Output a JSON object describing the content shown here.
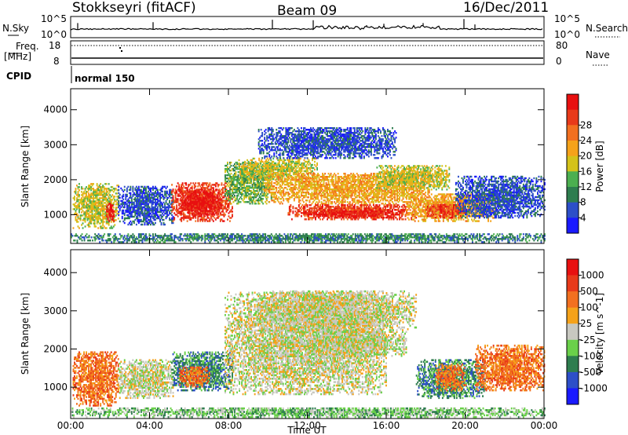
{
  "header": {
    "station": "Stokkseyri (fitACF)",
    "beam": "Beam 09",
    "date": "16/Dec/2011"
  },
  "status_panels": {
    "nsky": {
      "label": "N.Sky",
      "ticks": [
        "10^5",
        "10^0"
      ]
    },
    "nsearch": {
      "label": "N.Search",
      "ticks": [
        "10^5",
        "10^0"
      ]
    },
    "freq": {
      "label_top": "Freq.",
      "label_unit": "[MHz]",
      "ticks": [
        "18",
        "8"
      ]
    },
    "nave": {
      "label": "Nave",
      "ticks": [
        "80",
        "0"
      ]
    },
    "cpid": {
      "label": "CPID",
      "value": "normal 150"
    }
  },
  "chart_data": [
    {
      "type": "heatmap",
      "name": "Power",
      "ylabel": "Slant Range [km]",
      "xlabel": "Time UT",
      "x_ticks": [
        "00:00",
        "04:00",
        "08:00",
        "12:00",
        "16:00",
        "20:00",
        "00:00"
      ],
      "xlim_hours": [
        0,
        24
      ],
      "y_ticks": [
        1000,
        2000,
        3000,
        4000
      ],
      "ylim_km": [
        180,
        4600
      ],
      "colorbar": {
        "label": "Power [dB]",
        "ticks": [
          "4",
          "8",
          "12",
          "16",
          "20",
          "24",
          "28"
        ],
        "colors": [
          "#1a1aff",
          "#2d4fc8",
          "#2e7d4f",
          "#4caf50",
          "#d4c21a",
          "#f5a21a",
          "#f27020",
          "#e83a1a",
          "#e81010"
        ]
      },
      "regions": [
        {
          "t": [
            0.1,
            2.4
          ],
          "r": [
            600,
            1900
          ],
          "level": 4
        },
        {
          "t": [
            1.8,
            2.2
          ],
          "r": [
            800,
            1300
          ],
          "level": 8
        },
        {
          "t": [
            2.4,
            5.2
          ],
          "r": [
            700,
            1800
          ],
          "level": 1
        },
        {
          "t": [
            5.1,
            8.2
          ],
          "r": [
            800,
            1900
          ],
          "level": 7
        },
        {
          "t": [
            5.6,
            7.6
          ],
          "r": [
            1000,
            1700
          ],
          "level": 8
        },
        {
          "t": [
            7.8,
            10.2
          ],
          "r": [
            1300,
            2500
          ],
          "level": 3
        },
        {
          "t": [
            8.5,
            12.5
          ],
          "r": [
            2000,
            2600
          ],
          "level": 4
        },
        {
          "t": [
            9.5,
            16.5
          ],
          "r": [
            2600,
            3500
          ],
          "level": 1
        },
        {
          "t": [
            9.8,
            18.2
          ],
          "r": [
            1300,
            2200
          ],
          "level": 5
        },
        {
          "t": [
            11.0,
            17.5
          ],
          "r": [
            850,
            1300
          ],
          "level": 7
        },
        {
          "t": [
            12.0,
            16.5
          ],
          "r": [
            900,
            1100
          ],
          "level": 8
        },
        {
          "t": [
            15.5,
            19.2
          ],
          "r": [
            1700,
            2400
          ],
          "level": 4
        },
        {
          "t": [
            17.0,
            21.5
          ],
          "r": [
            800,
            1600
          ],
          "level": 5
        },
        {
          "t": [
            18.0,
            20.0
          ],
          "r": [
            900,
            1300
          ],
          "level": 7
        },
        {
          "t": [
            19.5,
            24.0
          ],
          "r": [
            900,
            2100
          ],
          "level": 1
        },
        {
          "t": [
            0.0,
            24.0
          ],
          "r": [
            200,
            450
          ],
          "level": 2
        }
      ]
    },
    {
      "type": "heatmap",
      "name": "Velocity",
      "ylabel": "Slant Range [km]",
      "xlabel": "Time UT",
      "x_ticks": [
        "00:00",
        "04:00",
        "08:00",
        "12:00",
        "16:00",
        "20:00",
        "00:00"
      ],
      "xlim_hours": [
        0,
        24
      ],
      "y_ticks": [
        1000,
        2000,
        3000,
        4000
      ],
      "ylim_km": [
        180,
        4600
      ],
      "colorbar": {
        "label": "Velocity [m s^-1]",
        "ticks": [
          "1000",
          "500",
          "100",
          "25",
          "-25",
          "-100",
          "-500",
          "-1000"
        ],
        "colors": [
          "#1a1aff",
          "#2d4fc8",
          "#2e7d4f",
          "#6ad04a",
          "#c8c8c0",
          "#f5a21a",
          "#f27020",
          "#e83a1a",
          "#e81010"
        ]
      },
      "regions": [
        {
          "t": [
            0.1,
            2.4
          ],
          "r": [
            500,
            1900
          ],
          "level": 6
        },
        {
          "t": [
            2.4,
            5.2
          ],
          "r": [
            700,
            1700
          ],
          "level": 4
        },
        {
          "t": [
            5.1,
            8.2
          ],
          "r": [
            900,
            1900
          ],
          "level": 2
        },
        {
          "t": [
            5.5,
            7.0
          ],
          "r": [
            1000,
            1500
          ],
          "level": 6
        },
        {
          "t": [
            7.8,
            16.0
          ],
          "r": [
            800,
            3500
          ],
          "level": 4
        },
        {
          "t": [
            9.5,
            17.5
          ],
          "r": [
            2500,
            3500
          ],
          "level": 4
        },
        {
          "t": [
            12.0,
            17.0
          ],
          "r": [
            1800,
            2500
          ],
          "level": 4
        },
        {
          "t": [
            17.5,
            21.0
          ],
          "r": [
            700,
            1700
          ],
          "level": 2
        },
        {
          "t": [
            18.5,
            20.0
          ],
          "r": [
            900,
            1600
          ],
          "level": 6
        },
        {
          "t": [
            20.5,
            24.0
          ],
          "r": [
            900,
            2100
          ],
          "level": 6
        },
        {
          "t": [
            0.0,
            24.0
          ],
          "r": [
            200,
            450
          ],
          "level": 3
        }
      ]
    }
  ]
}
